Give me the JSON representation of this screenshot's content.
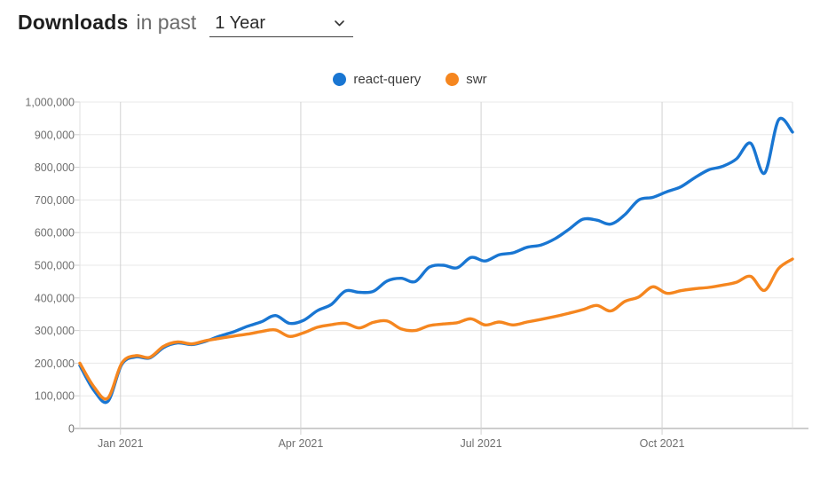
{
  "header": {
    "title": "Downloads",
    "subtitle": "in past",
    "range_select": {
      "value": "1 Year",
      "icon": "chevron-down-icon"
    }
  },
  "legend": [
    {
      "label": "react-query",
      "color": "#1976d2"
    },
    {
      "label": "swr",
      "color": "#f5861f"
    }
  ],
  "chart_data": {
    "type": "line",
    "title": "Downloads in past 1 Year",
    "xlabel": "",
    "ylabel": "",
    "ylim": [
      0,
      1000000
    ],
    "y_step": 100000,
    "grid": true,
    "legend_position": "top-center",
    "y_tick_labels": [
      "0",
      "100,000",
      "200,000",
      "300,000",
      "400,000",
      "500,000",
      "600,000",
      "700,000",
      "800,000",
      "900,000",
      "1,000,000"
    ],
    "x_ticks": [
      {
        "label": "Jan 2021",
        "pos": 0.057
      },
      {
        "label": "Apr 2021",
        "pos": 0.31
      },
      {
        "label": "Jul 2021",
        "pos": 0.563
      },
      {
        "label": "Oct 2021",
        "pos": 0.817
      }
    ],
    "x_description": "weekly npm downloads, mid-Dec 2020 through early-Dec 2021, 52 points",
    "series": [
      {
        "name": "react-query",
        "color": "#1976d2",
        "values": [
          193000,
          117000,
          83000,
          196000,
          219000,
          216000,
          248000,
          262000,
          257000,
          267000,
          283000,
          296000,
          313000,
          327000,
          346000,
          322000,
          331000,
          361000,
          380000,
          421000,
          417000,
          420000,
          452000,
          460000,
          450000,
          494000,
          500000,
          492000,
          524000,
          513000,
          532000,
          538000,
          555000,
          562000,
          581000,
          610000,
          641000,
          638000,
          626000,
          655000,
          700000,
          708000,
          725000,
          740000,
          768000,
          792000,
          803000,
          826000,
          874000,
          782000,
          945000,
          908000
        ]
      },
      {
        "name": "swr",
        "color": "#f5861f",
        "values": [
          200000,
          128000,
          93000,
          200000,
          223000,
          218000,
          252000,
          265000,
          259000,
          269000,
          276000,
          283000,
          289000,
          297000,
          302000,
          282000,
          293000,
          310000,
          318000,
          322000,
          308000,
          325000,
          329000,
          305000,
          300000,
          315000,
          320000,
          324000,
          336000,
          317000,
          326000,
          317000,
          326000,
          334000,
          343000,
          353000,
          364000,
          377000,
          360000,
          389000,
          403000,
          434000,
          414000,
          422000,
          428000,
          432000,
          439000,
          448000,
          466000,
          423000,
          490000,
          519000
        ]
      }
    ]
  }
}
